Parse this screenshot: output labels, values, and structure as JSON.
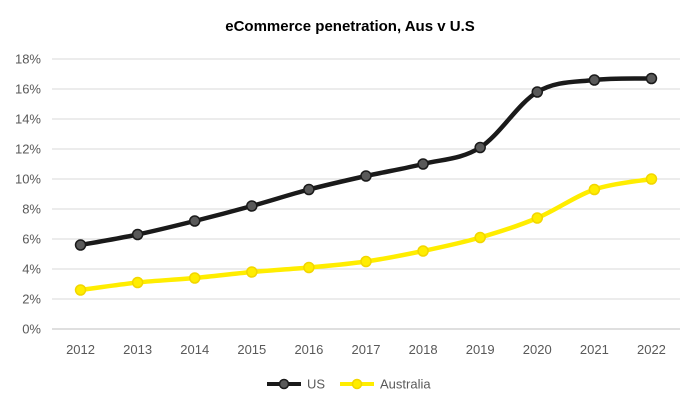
{
  "chart_data": {
    "type": "line",
    "title": "eCommerce penetration, Aus v U.S",
    "xlabel": "",
    "ylabel": "",
    "categories": [
      "2012",
      "2013",
      "2014",
      "2015",
      "2016",
      "2017",
      "2018",
      "2019",
      "2020",
      "2021",
      "2022"
    ],
    "y_tick_labels": [
      "0%",
      "2%",
      "4%",
      "6%",
      "8%",
      "10%",
      "12%",
      "14%",
      "16%",
      "18%"
    ],
    "ylim": [
      0,
      18
    ],
    "y_unit": "%",
    "grid": true,
    "legend_position": "bottom",
    "smooth": true,
    "series": [
      {
        "name": "US",
        "color": "#1a1a1a",
        "values": [
          5.6,
          6.3,
          7.2,
          8.2,
          9.3,
          10.2,
          11.0,
          12.1,
          15.8,
          16.6,
          16.7
        ]
      },
      {
        "name": "Australia",
        "color": "#ffed00",
        "values": [
          2.6,
          3.1,
          3.4,
          3.8,
          4.1,
          4.5,
          5.2,
          6.1,
          7.4,
          9.3,
          10.0
        ]
      }
    ]
  }
}
